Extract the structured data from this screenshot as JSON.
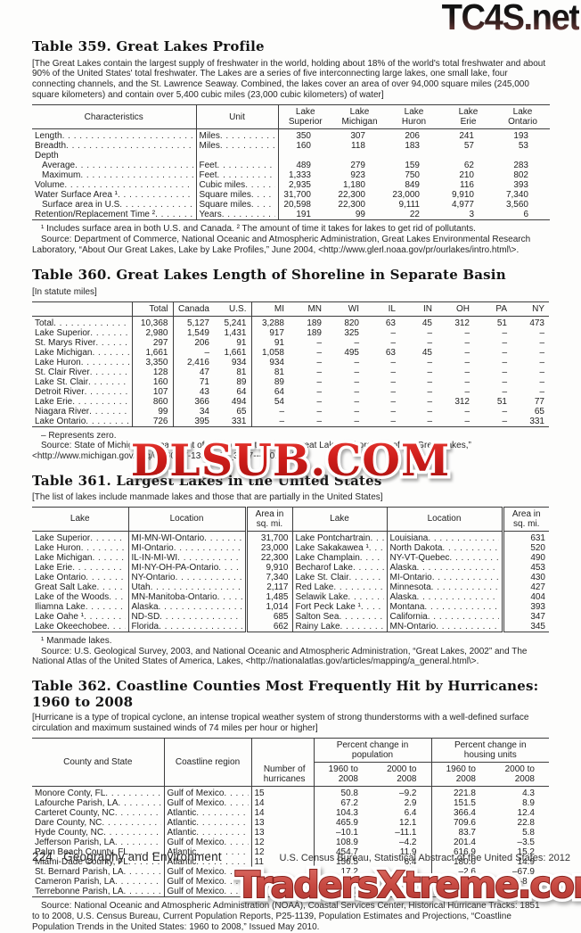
{
  "meta": {
    "dots": ". . . . . . . . . . . . . . . . . . . . . . . . . . . . . . . . . . . . . . . . . . . . . . . . . . . ."
  },
  "watermarks": {
    "top": "TC4S.net",
    "middle": "DLSUB.COM",
    "bottom": "TradersXtreme.com",
    "red": "#c8201c"
  },
  "footer": {
    "page_number": "224",
    "section": "Geography and Environment",
    "cite": "U.S. Census Bureau, Statistical Abstract of the United States: 2012"
  },
  "t359": {
    "title": "Table 359. Great Lakes Profile",
    "note": "[The Great Lakes contain the largest supply of freshwater in the world, holding about 18% of the world's total freshwater and about 90% of the United States' total freshwater. The Lakes are a series of five interconnecting large lakes, one small lake, four connecting channels, and the St. Lawrence Seaway. Combined, the lakes cover an area of over 94,000 square miles (245,000 square kilometers) and contain over 5,400 cubic miles (23,000 cubic kilometers) of water]",
    "headers": [
      "Characteristics",
      "Unit",
      "Lake|Superior",
      "Lake|Michigan",
      "Lake|Huron",
      "Lake|Erie",
      "Lake|Ontario"
    ],
    "rows": [
      {
        "label": "Length",
        "indent": 0,
        "dots": true,
        "unit": "Miles",
        "values": [
          "350",
          "307",
          "206",
          "241",
          "193"
        ]
      },
      {
        "label": "Breadth",
        "indent": 0,
        "dots": true,
        "unit": "Miles",
        "values": [
          "160",
          "118",
          "183",
          "57",
          "53"
        ]
      },
      {
        "label": "Depth",
        "indent": 0,
        "dots": false,
        "unit": "",
        "values": [
          "",
          "",
          "",
          "",
          ""
        ]
      },
      {
        "label": "Average",
        "indent": 1,
        "dots": true,
        "unit": "Feet",
        "values": [
          "489",
          "279",
          "159",
          "62",
          "283"
        ]
      },
      {
        "label": "Maximum",
        "indent": 1,
        "dots": true,
        "unit": "Feet",
        "values": [
          "1,333",
          "923",
          "750",
          "210",
          "802"
        ]
      },
      {
        "label": "Volume",
        "indent": 0,
        "dots": true,
        "unit": "Cubic miles",
        "values": [
          "2,935",
          "1,180",
          "849",
          "116",
          "393"
        ]
      },
      {
        "label": "Water Surface Area ¹",
        "indent": 0,
        "dots": true,
        "unit": "Square miles",
        "values": [
          "31,700",
          "22,300",
          "23,000",
          "9,910",
          "7,340"
        ]
      },
      {
        "label": "Surface area in U.S",
        "indent": 1,
        "dots": true,
        "unit": "Square miles",
        "values": [
          "20,598",
          "22,300",
          "9,111",
          "4,977",
          "3,560"
        ]
      },
      {
        "label": "Retention/Replacement Time ²",
        "indent": 0,
        "dots": true,
        "unit": "Years",
        "values": [
          "191",
          "99",
          "22",
          "3",
          "6"
        ]
      }
    ],
    "footnote": "¹ Includes surface area in both U.S. and Canada. ² The amount of time it takes for lakes to get rid of pollutants.",
    "source": "Source: Department of Commerce, National Oceanic and Atmospheric Administration, Great Lakes Environmental Research Laboratory, “About Our Great Lakes, Lake by Lake Profiles,” June 2004, <http://www.glerl.noaa.gov/pr/ourlakes/intro.html\\>."
  },
  "t360": {
    "title": "Table 360. Great Lakes Length of Shoreline in Separate Basin",
    "unit_note": "[In statute miles]",
    "columns": [
      "Total",
      "Canada",
      "U.S.",
      "MI",
      "MN",
      "WI",
      "IL",
      "IN",
      "OH",
      "PA",
      "NY"
    ],
    "rows": [
      {
        "label": "Total",
        "bold": true,
        "values": [
          "10,368",
          "5,127",
          "5,241",
          "3,288",
          "189",
          "820",
          "63",
          "45",
          "312",
          "51",
          "473"
        ]
      },
      {
        "label": "Lake Superior",
        "bold": false,
        "values": [
          "2,980",
          "1,549",
          "1,431",
          "917",
          "189",
          "325",
          "–",
          "–",
          "–",
          "–",
          "–"
        ]
      },
      {
        "label": "St. Marys River",
        "bold": false,
        "values": [
          "297",
          "206",
          "91",
          "91",
          "–",
          "–",
          "–",
          "–",
          "–",
          "–",
          "–"
        ]
      },
      {
        "label": "Lake Michigan",
        "bold": false,
        "values": [
          "1,661",
          "–",
          "1,661",
          "1,058",
          "–",
          "495",
          "63",
          "45",
          "–",
          "–",
          "–"
        ]
      },
      {
        "label": "Lake Huron",
        "bold": false,
        "values": [
          "3,350",
          "2,416",
          "934",
          "934",
          "–",
          "–",
          "–",
          "–",
          "–",
          "–",
          "–"
        ]
      },
      {
        "label": "St. Clair River",
        "bold": false,
        "values": [
          "128",
          "47",
          "81",
          "81",
          "–",
          "–",
          "–",
          "–",
          "–",
          "–",
          "–"
        ]
      },
      {
        "label": "Lake St. Clair",
        "bold": false,
        "values": [
          "160",
          "71",
          "89",
          "89",
          "–",
          "–",
          "–",
          "–",
          "–",
          "–",
          "–"
        ]
      },
      {
        "label": "Detroit River",
        "bold": false,
        "values": [
          "107",
          "43",
          "64",
          "64",
          "–",
          "–",
          "–",
          "–",
          "–",
          "–",
          "–"
        ]
      },
      {
        "label": "Lake Erie",
        "bold": false,
        "values": [
          "860",
          "366",
          "494",
          "54",
          "–",
          "–",
          "–",
          "–",
          "312",
          "51",
          "77"
        ]
      },
      {
        "label": "Niagara River",
        "bold": false,
        "values": [
          "99",
          "34",
          "65",
          "–",
          "–",
          "–",
          "–",
          "–",
          "–",
          "–",
          "65"
        ]
      },
      {
        "label": "Lake Ontario",
        "bold": false,
        "values": [
          "726",
          "395",
          "331",
          "–",
          "–",
          "–",
          "–",
          "–",
          "–",
          "–",
          "331"
        ]
      }
    ],
    "footnote": "– Represents zero.",
    "source": "Source: State of Michigan, Department of Environment Quality, “Great Lakes, Shorelines of the Great Lakes,” <http://www.michigan.gov/deq/0,1607,7-135-3313_3677---,00.html\\>."
  },
  "t361": {
    "title": "Table 361. Largest Lakes in the United States",
    "note": "[The list of lakes include manmade lakes and those that are partially in the United States]",
    "headers": [
      "Lake",
      "Location",
      "Area in|sq. mi.",
      "Lake",
      "Location",
      "Area in|sq. mi."
    ],
    "rows": [
      [
        "Lake Superior",
        "MI-MN-WI-Ontario",
        "31,700",
        "Lake Pontchartrain",
        "Louisiana",
        "631"
      ],
      [
        "Lake Huron",
        "MI-Ontario",
        "23,000",
        "Lake Sakakawea ¹",
        "North Dakota",
        "520"
      ],
      [
        "Lake Michigan",
        "IL-IN-MI-WI",
        "22,300",
        "Lake Champlain",
        "NY-VT-Quebec",
        "490"
      ],
      [
        "Lake Erie",
        "MI-NY-OH-PA-Ontario",
        "9,910",
        "Becharof Lake",
        "Alaska",
        "453"
      ],
      [
        "Lake Ontario",
        "NY-Ontario",
        "7,340",
        "Lake St. Clair",
        "MI-Ontario",
        "430"
      ],
      [
        "Great Salt Lake",
        "Utah",
        "2,117",
        "Red Lake",
        "Minnesota",
        "427"
      ],
      [
        "Lake of the Woods",
        "MN-Manitoba-Ontario",
        "1,485",
        "Selawik Lake",
        "Alaska",
        "404"
      ],
      [
        "Iliamna Lake",
        "Alaska",
        "1,014",
        "Fort Peck Lake ¹",
        "Montana",
        "393"
      ],
      [
        "Lake Oahe ¹",
        "ND-SD",
        "685",
        "Salton Sea",
        "California",
        "347"
      ],
      [
        "Lake Okeechobee",
        "Florida",
        "662",
        "Rainy Lake",
        "MN-Ontario",
        "345"
      ]
    ],
    "footnote": "¹ Manmade lakes.",
    "source": "Source: U.S. Geological Survey, 2003, and National Oceanic and Atmospheric Administration, “Great Lakes, 2002” and The National Atlas of the United States of America, Lakes, <http://nationalatlas.gov/articles/mapping/a_general.html\\>."
  },
  "t362": {
    "title": "Table 362. Coastline Counties Most Frequently Hit by Hurricanes: 1960 to 2008",
    "note": "[Hurricane is a type of tropical cyclone, an intense tropical weather system of strong thunderstorms with a well-defined surface circulation and maximum sustained winds of 74 miles per hour or higher]",
    "headers": {
      "county": "County and State",
      "coastline": "Coastline region",
      "number": "Number of|hurricanes",
      "pop_group": "Percent change in|population",
      "housing_group": "Percent change in|housing units",
      "sub": [
        "1960 to|2008",
        "2000 to|2008",
        "1960 to|2008",
        "2000 to|2008"
      ]
    },
    "rows": [
      [
        "Monore Conty, FL",
        "Gulf of Mexico",
        "15",
        "50.8",
        "–9.2",
        "221.8",
        "4.3"
      ],
      [
        "Lafourche Parish, LA",
        "Gulf of Mexico",
        "14",
        "67.2",
        "2.9",
        "151.5",
        "8.9"
      ],
      [
        "Carteret County, NC",
        "Atlantic",
        "14",
        "104.3",
        "6.4",
        "366.4",
        "12.4"
      ],
      [
        "Dare County, NC",
        "Atlantic",
        "13",
        "465.9",
        "12.1",
        "709.6",
        "22.8"
      ],
      [
        "Hyde County, NC",
        "Atlantic",
        "13",
        "–10.1",
        "–11.1",
        "83.7",
        "5.8"
      ],
      [
        "Jefferson Parish, LA",
        "Gulf of Mexico",
        "12",
        "108.9",
        "–4.2",
        "201.4",
        "–3.5"
      ],
      [
        "Palm Beach County, FL",
        "Atlantic",
        "12",
        "454.7",
        "11.9",
        "616.9",
        "15.2"
      ],
      [
        "Miami-Dade County, FL",
        "Atlantic",
        "11",
        "156.5",
        "6.4",
        "180.6",
        "14.9"
      ],
      [
        "St. Bernard Parish, LA",
        "Gulf of Mexico",
        "11",
        "17.2",
        "–43.9",
        "–2.6",
        "–67.9"
      ],
      [
        "Cameron Parish, LA",
        "Gulf of Mexico",
        "11",
        "4.8",
        "–27.6",
        "87.7",
        "–8.1"
      ],
      [
        "Terrebonne Parish, LA",
        "Gulf of Mexico",
        "11",
        "78.7",
        "3.9",
        "179.4",
        "11.0"
      ]
    ],
    "source": "Source: National Oceanic and Atmospheric Administration (NOAA), Coastal Services Center, Historical Hurricane Tracks: 1851 to to 2008, U.S. Census Bureau, Current Population Reports, P25-1139, Population Estimates and Projections, “Coastline Population Trends in the United States: 1960 to 2008,” Issued May 2010."
  }
}
